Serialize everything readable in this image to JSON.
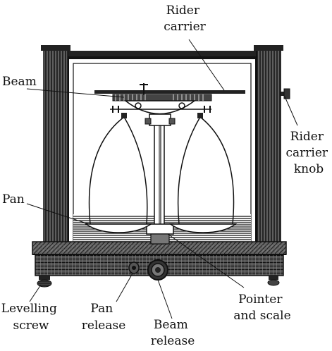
{
  "labels": {
    "rider_carrier": [
      "Rider",
      "carrier"
    ],
    "beam": "Beam",
    "rider_carrier_knob": [
      "Rider",
      "carrier",
      "knob"
    ],
    "pan": "Pan",
    "levelling_screw": [
      "Levelling",
      "screw"
    ],
    "pan_release": [
      "Pan",
      "release"
    ],
    "beam_release": [
      "Beam",
      "release"
    ],
    "pointer_and_scale": [
      "Pointer",
      "and scale"
    ]
  },
  "colors": {
    "ink": "#111111",
    "paper": "#ffffff",
    "shade": "#3a3a3a"
  }
}
